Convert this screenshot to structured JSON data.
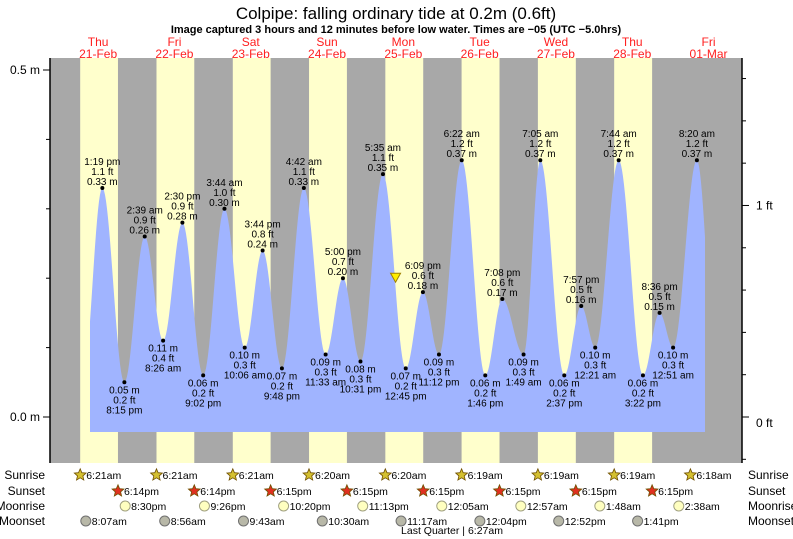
{
  "chart_data": {
    "type": "area",
    "title": "Colpipe: falling  ordinary tide at 0.2m (0.6ft)",
    "subtitle": "Image captured 3 hours and 12 minutes before low water. Times are −05 (UTC −5.0hrs)",
    "days": [
      {
        "weekday": "Thu",
        "date": "21-Feb"
      },
      {
        "weekday": "Fri",
        "date": "22-Feb"
      },
      {
        "weekday": "Sat",
        "date": "23-Feb"
      },
      {
        "weekday": "Sun",
        "date": "24-Feb"
      },
      {
        "weekday": "Mon",
        "date": "25-Feb"
      },
      {
        "weekday": "Tue",
        "date": "26-Feb"
      },
      {
        "weekday": "Wed",
        "date": "27-Feb"
      },
      {
        "weekday": "Thu",
        "date": "28-Feb"
      },
      {
        "weekday": "Fri",
        "date": "01-Mar"
      }
    ],
    "left_axis": {
      "unit": "m",
      "ylim": [
        0.0,
        0.5
      ],
      "tick_labels": [
        "0.5 m",
        "0.0 m"
      ],
      "minor_step": 0.1
    },
    "right_axis": {
      "unit": "ft",
      "tick_labels": [
        "1 ft",
        "0 ft"
      ],
      "minor_step": 0.2
    },
    "extremes": [
      {
        "date": "21-Feb",
        "time": "1:19 pm",
        "m": "0.33 m",
        "ft": "1.1 ft",
        "value": 0.33,
        "type": "high"
      },
      {
        "date": "21-Feb",
        "time": "8:15 pm",
        "m": "0.05 m",
        "ft": "0.2 ft",
        "value": 0.05,
        "type": "low"
      },
      {
        "date": "22-Feb",
        "time": "2:39 am",
        "m": "0.26 m",
        "ft": "0.9 ft",
        "value": 0.26,
        "type": "high"
      },
      {
        "date": "22-Feb",
        "time": "8:26 am",
        "m": "0.11 m",
        "ft": "0.4 ft",
        "value": 0.11,
        "type": "low"
      },
      {
        "date": "22-Feb",
        "time": "2:30 pm",
        "m": "0.28 m",
        "ft": "0.9 ft",
        "value": 0.28,
        "type": "high"
      },
      {
        "date": "22-Feb",
        "time": "9:02 pm",
        "m": "0.06 m",
        "ft": "0.2 ft",
        "value": 0.06,
        "type": "low"
      },
      {
        "date": "23-Feb",
        "time": "3:44 am",
        "m": "0.30 m",
        "ft": "1.0 ft",
        "value": 0.3,
        "type": "high"
      },
      {
        "date": "23-Feb",
        "time": "10:06 am",
        "m": "0.10 m",
        "ft": "0.3 ft",
        "value": 0.1,
        "type": "low"
      },
      {
        "date": "23-Feb",
        "time": "3:44 pm",
        "m": "0.24 m",
        "ft": "0.8 ft",
        "value": 0.24,
        "type": "high"
      },
      {
        "date": "23-Feb",
        "time": "9:48 pm",
        "m": "0.07 m",
        "ft": "0.2 ft",
        "value": 0.07,
        "type": "low"
      },
      {
        "date": "24-Feb",
        "time": "4:42 am",
        "m": "0.33 m",
        "ft": "1.1 ft",
        "value": 0.33,
        "type": "high"
      },
      {
        "date": "24-Feb",
        "time": "11:33 am",
        "m": "0.09 m",
        "ft": "0.3 ft",
        "value": 0.09,
        "type": "low"
      },
      {
        "date": "24-Feb",
        "time": "5:00 pm",
        "m": "0.20 m",
        "ft": "0.7 ft",
        "value": 0.2,
        "type": "high"
      },
      {
        "date": "24-Feb",
        "time": "10:31 pm",
        "m": "0.08 m",
        "ft": "0.3 ft",
        "value": 0.08,
        "type": "low"
      },
      {
        "date": "25-Feb",
        "time": "5:35 am",
        "m": "0.35 m",
        "ft": "1.1 ft",
        "value": 0.35,
        "type": "high"
      },
      {
        "date": "25-Feb",
        "time": "12:45 pm",
        "m": "0.07 m",
        "ft": "0.2 ft",
        "value": 0.07,
        "type": "low"
      },
      {
        "date": "25-Feb",
        "time": "6:09 pm",
        "m": "0.18 m",
        "ft": "0.6 ft",
        "value": 0.18,
        "type": "high"
      },
      {
        "date": "25-Feb",
        "time": "11:12 pm",
        "m": "0.09 m",
        "ft": "0.3 ft",
        "value": 0.09,
        "type": "low"
      },
      {
        "date": "26-Feb",
        "time": "6:22 am",
        "m": "0.37 m",
        "ft": "1.2 ft",
        "value": 0.37,
        "type": "high"
      },
      {
        "date": "26-Feb",
        "time": "1:46 pm",
        "m": "0.06 m",
        "ft": "0.2 ft",
        "value": 0.06,
        "type": "low"
      },
      {
        "date": "26-Feb",
        "time": "7:08 pm",
        "m": "0.17 m",
        "ft": "0.6 ft",
        "value": 0.17,
        "type": "high"
      },
      {
        "date": "27-Feb",
        "time": "1:49 am",
        "m": "0.09 m",
        "ft": "0.3 ft",
        "value": 0.09,
        "type": "low"
      },
      {
        "date": "27-Feb",
        "time": "7:05 am",
        "m": "0.37 m",
        "ft": "1.2 ft",
        "value": 0.37,
        "type": "high"
      },
      {
        "date": "27-Feb",
        "time": "2:37 pm",
        "m": "0.06 m",
        "ft": "0.2 ft",
        "value": 0.06,
        "type": "low"
      },
      {
        "date": "27-Feb",
        "time": "7:57 pm",
        "m": "0.16 m",
        "ft": "0.5 ft",
        "value": 0.16,
        "type": "high"
      },
      {
        "date": "28-Feb",
        "time": "12:21 am",
        "m": "0.10 m",
        "ft": "0.3 ft",
        "value": 0.1,
        "type": "low"
      },
      {
        "date": "28-Feb",
        "time": "7:44 am",
        "m": "0.37 m",
        "ft": "1.2 ft",
        "value": 0.37,
        "type": "high"
      },
      {
        "date": "28-Feb",
        "time": "3:22 pm",
        "m": "0.06 m",
        "ft": "0.2 ft",
        "value": 0.06,
        "type": "low"
      },
      {
        "date": "28-Feb",
        "time": "8:36 pm",
        "m": "0.15 m",
        "ft": "0.5 ft",
        "value": 0.15,
        "type": "high"
      },
      {
        "date": "01-Mar",
        "time": "12:51 am",
        "m": "0.10 m",
        "ft": "0.3 ft",
        "value": 0.1,
        "type": "low"
      },
      {
        "date": "01-Mar",
        "time": "8:20 am",
        "m": "0.37 m",
        "ft": "1.2 ft",
        "value": 0.37,
        "type": "high"
      }
    ],
    "current_marker": {
      "date": "25-Feb",
      "time": "9:33 am",
      "value": 0.2
    },
    "colors": {
      "water": "#a0b4ff",
      "day": "#ffffcc",
      "night": "#a8a8a8",
      "day_header": "#ff2020",
      "marker": "#ffee00"
    },
    "rows": {
      "sunrise": {
        "label": "Sunrise",
        "events": [
          {
            "date": "21-Feb",
            "time": "6:21am"
          },
          {
            "date": "22-Feb",
            "time": "6:21am"
          },
          {
            "date": "23-Feb",
            "time": "6:21am"
          },
          {
            "date": "24-Feb",
            "time": "6:20am"
          },
          {
            "date": "25-Feb",
            "time": "6:20am"
          },
          {
            "date": "26-Feb",
            "time": "6:19am"
          },
          {
            "date": "27-Feb",
            "time": "6:19am"
          },
          {
            "date": "28-Feb",
            "time": "6:19am"
          },
          {
            "date": "01-Mar",
            "time": "6:18am"
          }
        ]
      },
      "sunset": {
        "label": "Sunset",
        "events": [
          {
            "date": "21-Feb",
            "time": "6:14pm"
          },
          {
            "date": "22-Feb",
            "time": "6:14pm"
          },
          {
            "date": "23-Feb",
            "time": "6:15pm"
          },
          {
            "date": "24-Feb",
            "time": "6:15pm"
          },
          {
            "date": "25-Feb",
            "time": "6:15pm"
          },
          {
            "date": "26-Feb",
            "time": "6:15pm"
          },
          {
            "date": "27-Feb",
            "time": "6:15pm"
          },
          {
            "date": "28-Feb",
            "time": "6:15pm"
          }
        ]
      },
      "moonrise": {
        "label": "Moonrise",
        "events": [
          {
            "date": "21-Feb",
            "time": "8:30pm"
          },
          {
            "date": "22-Feb",
            "time": "9:26pm"
          },
          {
            "date": "23-Feb",
            "time": "10:20pm"
          },
          {
            "date": "24-Feb",
            "time": "11:13pm"
          },
          {
            "date": "26-Feb",
            "time": "12:05am"
          },
          {
            "date": "27-Feb",
            "time": "12:57am"
          },
          {
            "date": "28-Feb",
            "time": "1:48am"
          },
          {
            "date": "01-Mar",
            "time": "2:38am"
          }
        ]
      },
      "moonset": {
        "label": "Moonset",
        "events": [
          {
            "date": "21-Feb",
            "time": "8:07am"
          },
          {
            "date": "22-Feb",
            "time": "8:56am"
          },
          {
            "date": "23-Feb",
            "time": "9:43am"
          },
          {
            "date": "24-Feb",
            "time": "10:30am"
          },
          {
            "date": "25-Feb",
            "time": "11:17am"
          },
          {
            "date": "26-Feb",
            "time": "12:04pm"
          },
          {
            "date": "27-Feb",
            "time": "12:52pm"
          },
          {
            "date": "28-Feb",
            "time": "1:41pm"
          }
        ]
      }
    },
    "moon_phase": {
      "date": "26-Feb",
      "time": "6:27am",
      "text": "Last Quarter | 6:27am"
    }
  }
}
